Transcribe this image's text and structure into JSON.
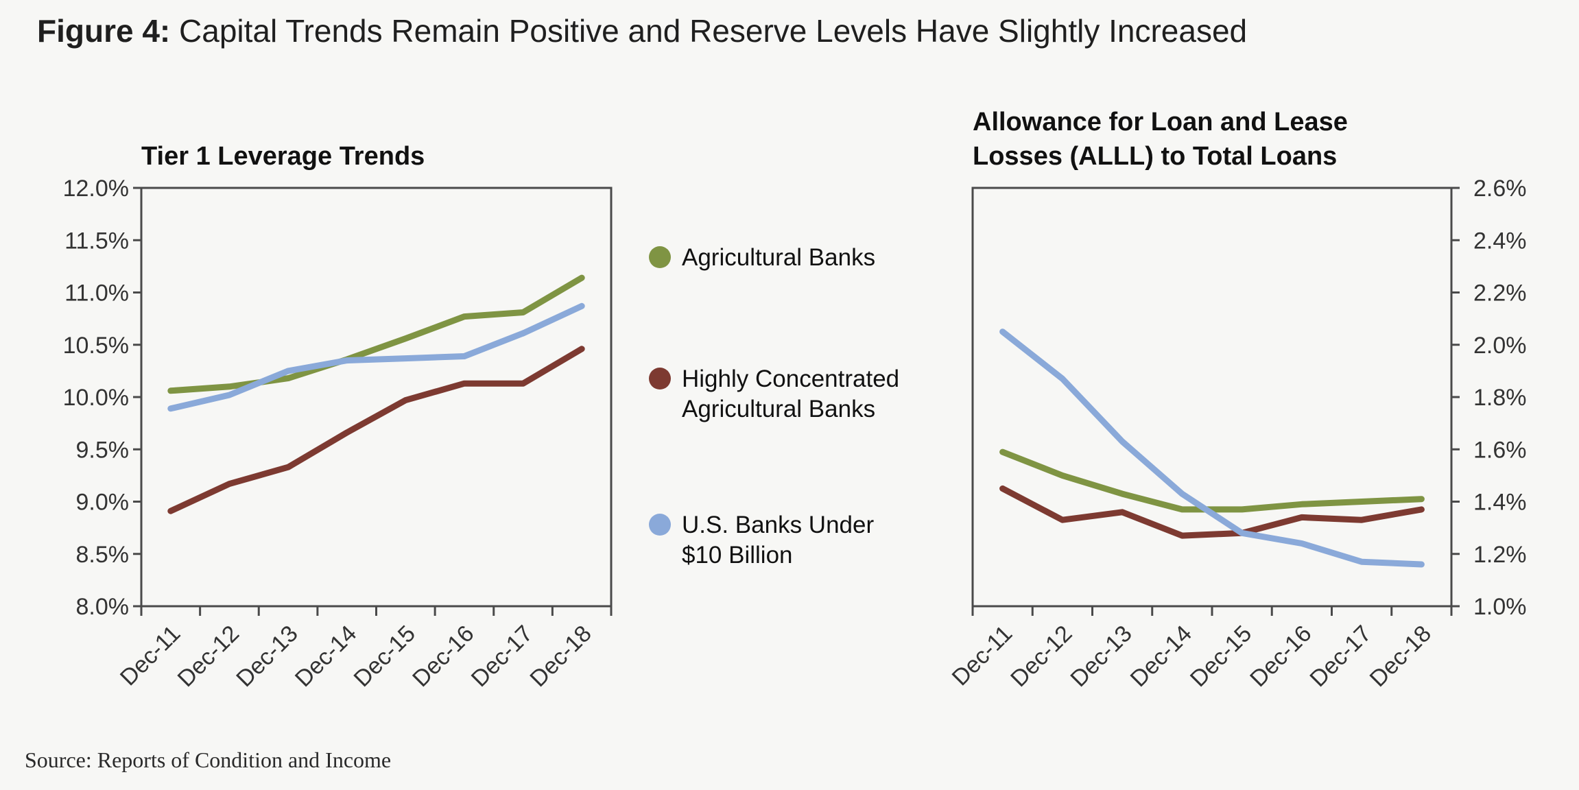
{
  "figure": {
    "label": "Figure 4:",
    "title": "Capital Trends Remain Positive and Reserve Levels Have Slightly Increased",
    "source": "Source: Reports of Condition and Income"
  },
  "legend": [
    {
      "label_lines": [
        "Agricultural Banks"
      ],
      "color": "#7f9443"
    },
    {
      "label_lines": [
        "Highly Concentrated",
        "Agricultural Banks"
      ],
      "color": "#7d3a31"
    },
    {
      "label_lines": [
        "U.S. Banks Under",
        "$10 Billion"
      ],
      "color": "#8aa9d9"
    }
  ],
  "chart_data": [
    {
      "type": "line",
      "title_lines": [
        "Tier 1 Leverage Trends"
      ],
      "categories": [
        "Dec-11",
        "Dec-12",
        "Dec-13",
        "Dec-14",
        "Dec-15",
        "Dec-16",
        "Dec-17",
        "Dec-18"
      ],
      "y_axis_side": "left",
      "ylim": [
        8.0,
        12.0
      ],
      "yticks": [
        8.0,
        8.5,
        9.0,
        9.5,
        10.0,
        10.5,
        11.0,
        11.5,
        12.0
      ],
      "ytick_labels": [
        "8.0%",
        "8.5%",
        "9.0%",
        "9.5%",
        "10.0%",
        "10.5%",
        "11.0%",
        "11.5%",
        "12.0%"
      ],
      "series": [
        {
          "name": "Agricultural Banks",
          "color": "#7f9443",
          "points": [
            [
              0.5,
              10.06
            ],
            [
              1.5,
              10.1
            ],
            [
              2.5,
              10.18
            ],
            [
              3.5,
              10.36
            ],
            [
              4.5,
              10.56
            ],
            [
              5.5,
              10.77
            ],
            [
              6.5,
              10.81
            ],
            [
              7.5,
              11.14
            ]
          ]
        },
        {
          "name": "Highly Concentrated Agricultural Banks",
          "color": "#7d3a31",
          "points": [
            [
              0.5,
              8.91
            ],
            [
              1.5,
              9.17
            ],
            [
              2.5,
              9.33
            ],
            [
              3.5,
              9.66
            ],
            [
              4.5,
              9.97
            ],
            [
              5.5,
              10.13
            ],
            [
              6.5,
              10.13
            ],
            [
              7.5,
              10.46
            ]
          ]
        },
        {
          "name": "U.S. Banks Under $10 Billion",
          "color": "#8aa9d9",
          "points": [
            [
              0.5,
              9.89
            ],
            [
              1.5,
              10.02
            ],
            [
              2.5,
              10.25
            ],
            [
              3.5,
              10.35
            ],
            [
              4.5,
              10.37
            ],
            [
              5.5,
              10.39
            ],
            [
              6.5,
              10.61
            ],
            [
              7.5,
              10.87
            ]
          ]
        }
      ]
    },
    {
      "type": "line",
      "title_lines": [
        "Allowance for Loan and Lease",
        "Losses (ALLL) to Total Loans"
      ],
      "categories": [
        "Dec-11",
        "Dec-12",
        "Dec-13",
        "Dec-14",
        "Dec-15",
        "Dec-16",
        "Dec-17",
        "Dec-18"
      ],
      "y_axis_side": "right",
      "ylim": [
        1.0,
        2.6
      ],
      "yticks": [
        1.0,
        1.2,
        1.4,
        1.6,
        1.8,
        2.0,
        2.2,
        2.4,
        2.6
      ],
      "ytick_labels": [
        "1.0%",
        "1.2%",
        "1.4%",
        "1.6%",
        "1.8%",
        "2.0%",
        "2.2%",
        "2.4%",
        "2.6%"
      ],
      "series": [
        {
          "name": "Agricultural Banks",
          "color": "#7f9443",
          "points": [
            [
              0.5,
              1.59
            ],
            [
              1.5,
              1.5
            ],
            [
              2.5,
              1.43
            ],
            [
              3.5,
              1.37
            ],
            [
              4.5,
              1.37
            ],
            [
              5.5,
              1.39
            ],
            [
              6.5,
              1.4
            ],
            [
              7.5,
              1.41
            ]
          ]
        },
        {
          "name": "Highly Concentrated Agricultural Banks",
          "color": "#7d3a31",
          "points": [
            [
              0.5,
              1.45
            ],
            [
              1.5,
              1.33
            ],
            [
              2.5,
              1.36
            ],
            [
              3.5,
              1.27
            ],
            [
              4.5,
              1.28
            ],
            [
              5.5,
              1.34
            ],
            [
              6.5,
              1.33
            ],
            [
              7.5,
              1.37
            ]
          ]
        },
        {
          "name": "U.S. Banks Under $10 Billion",
          "color": "#8aa9d9",
          "points": [
            [
              0.5,
              2.05
            ],
            [
              1.5,
              1.87
            ],
            [
              2.5,
              1.63
            ],
            [
              3.5,
              1.43
            ],
            [
              4.5,
              1.28
            ],
            [
              5.5,
              1.24
            ],
            [
              6.5,
              1.17
            ],
            [
              7.5,
              1.16
            ]
          ]
        }
      ]
    }
  ]
}
